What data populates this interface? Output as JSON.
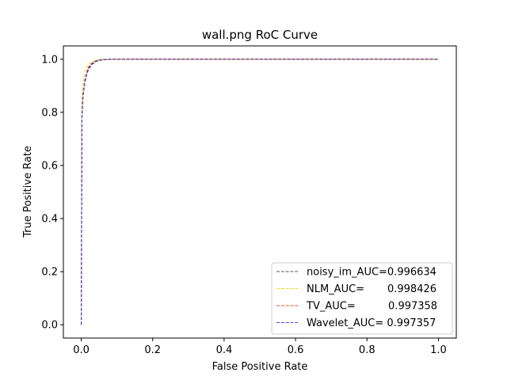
{
  "chart_data": {
    "type": "line",
    "title": "wall.png RoC Curve",
    "xlabel": "False Positive Rate",
    "ylabel": "True Positive Rate",
    "xlim": [
      -0.05,
      1.05
    ],
    "ylim": [
      -0.05,
      1.05
    ],
    "x_ticks": [
      0.0,
      0.2,
      0.4,
      0.6,
      0.8,
      1.0
    ],
    "x_tick_labels": [
      "0.0",
      "0.2",
      "0.4",
      "0.6",
      "0.8",
      "1.0"
    ],
    "y_ticks": [
      0.0,
      0.2,
      0.4,
      0.6,
      0.8,
      1.0
    ],
    "y_tick_labels": [
      "0.0",
      "0.2",
      "0.4",
      "0.6",
      "0.8",
      "1.0"
    ],
    "grid": false,
    "legend_position": "bottom-right",
    "series": [
      {
        "name": "noisy_im_AUC=0.996634",
        "color": "#404040",
        "dash": "dashed",
        "x": [
          0,
          0.002,
          0.005,
          0.01,
          0.015,
          0.02,
          0.03,
          0.04,
          0.05,
          0.06,
          0.08,
          0.1,
          0.2,
          0.4,
          0.6,
          0.8,
          1.0
        ],
        "y": [
          0,
          0.78,
          0.86,
          0.91,
          0.94,
          0.96,
          0.98,
          0.99,
          0.995,
          0.998,
          0.999,
          1.0,
          1.0,
          1.0,
          1.0,
          1.0,
          1.0
        ]
      },
      {
        "name": "NLM_AUC=       0.998426",
        "color": "#ffd400",
        "dash": "dashed",
        "x": [
          0,
          0.002,
          0.005,
          0.01,
          0.015,
          0.02,
          0.03,
          0.04,
          0.05,
          0.06,
          0.08,
          0.1,
          0.2,
          0.4,
          0.6,
          0.8,
          1.0
        ],
        "y": [
          0,
          0.85,
          0.91,
          0.95,
          0.97,
          0.98,
          0.99,
          0.996,
          0.998,
          0.999,
          1.0,
          1.0,
          1.0,
          1.0,
          1.0,
          1.0,
          1.0
        ]
      },
      {
        "name": "TV_AUC=          0.997358",
        "color": "#e8332a",
        "dash": "dashed",
        "x": [
          0,
          0.002,
          0.005,
          0.01,
          0.015,
          0.02,
          0.03,
          0.04,
          0.05,
          0.06,
          0.08,
          0.1,
          0.2,
          0.4,
          0.6,
          0.8,
          1.0
        ],
        "y": [
          0,
          0.8,
          0.87,
          0.92,
          0.95,
          0.97,
          0.985,
          0.993,
          0.997,
          0.999,
          1.0,
          1.0,
          1.0,
          1.0,
          1.0,
          1.0,
          1.0
        ]
      },
      {
        "name": "Wavelet_AUC= 0.997357",
        "color": "#3b3bd8",
        "dash": "dashed",
        "x": [
          0,
          0.002,
          0.005,
          0.01,
          0.015,
          0.02,
          0.03,
          0.04,
          0.05,
          0.06,
          0.08,
          0.1,
          0.2,
          0.4,
          0.6,
          0.8,
          1.0
        ],
        "y": [
          0,
          0.79,
          0.865,
          0.915,
          0.945,
          0.965,
          0.983,
          0.992,
          0.996,
          0.998,
          1.0,
          1.0,
          1.0,
          1.0,
          1.0,
          1.0,
          1.0
        ]
      }
    ]
  }
}
